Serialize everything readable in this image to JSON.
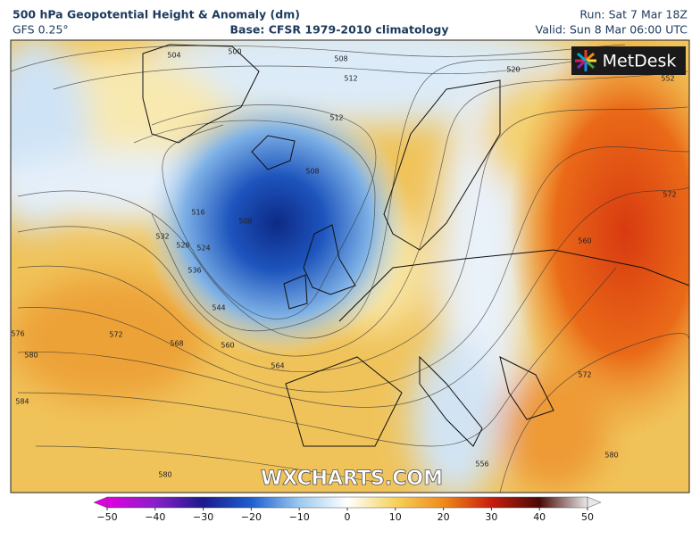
{
  "header": {
    "title": "500 hPa Geopotential Height & Anomaly (dm)",
    "model": "GFS 0.25°",
    "base": "Base: CFSR 1979-2010 climatology",
    "run": "Run: Sat 7 Mar 18Z",
    "valid": "Valid: Sun 8 Mar 06:00 UTC"
  },
  "logo": "MetDesk",
  "watermark": "WXCHARTS.COM",
  "contour_labels": [
    "504",
    "500",
    "508",
    "512",
    "512",
    "508",
    "516",
    "508",
    "532",
    "528",
    "524",
    "536",
    "544",
    "576",
    "580",
    "572",
    "568",
    "560",
    "564",
    "584",
    "580",
    "556",
    "560",
    "572",
    "572",
    "580",
    "520",
    "552"
  ],
  "colorbar": {
    "ticks": [
      "−50",
      "−40",
      "−30",
      "−20",
      "−10",
      "0",
      "10",
      "20",
      "30",
      "40",
      "50"
    ]
  }
}
